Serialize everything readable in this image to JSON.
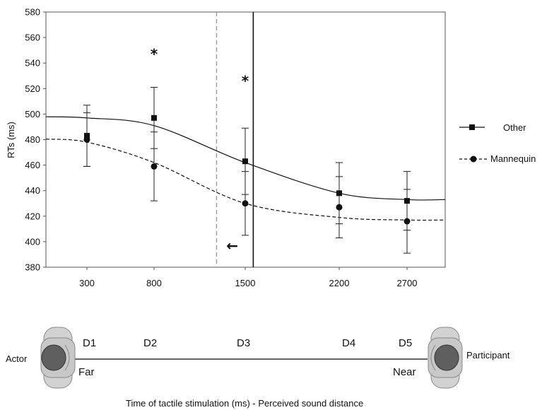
{
  "chart_data": {
    "type": "line",
    "title": "",
    "ylabel": "RTs (ms)",
    "xlabel": "Time of tactile stimulation (ms) - Perceived sound distance",
    "ylim": [
      380,
      580
    ],
    "yticks": [
      380,
      400,
      420,
      440,
      460,
      480,
      500,
      520,
      540,
      560,
      580
    ],
    "x": [
      300,
      800,
      1500,
      2200,
      2700
    ],
    "x_tick_labels": [
      "300",
      "800",
      "1500",
      "2200",
      "2700"
    ],
    "series": [
      {
        "name": "Other",
        "marker": "square",
        "line_style": "solid",
        "color": "#111111",
        "values": [
          483,
          497,
          463,
          438,
          432
        ],
        "error": [
          24,
          24,
          26,
          24,
          23
        ],
        "fit": [
          497,
          491,
          462,
          438,
          433
        ]
      },
      {
        "name": "Mannequin",
        "marker": "circle",
        "line_style": "dashed",
        "color": "#111111",
        "values": [
          480,
          459,
          430,
          427,
          416
        ],
        "error": [
          21,
          27,
          25,
          24,
          25
        ],
        "fit": [
          478,
          462,
          430,
          419,
          417
        ]
      }
    ],
    "reference_lines": [
      {
        "style": "dashed",
        "color": "#999999",
        "x_data": 1280
      },
      {
        "style": "solid",
        "color": "#111111",
        "x_data": 1560
      }
    ],
    "annotations": [
      {
        "text": "*",
        "x": 800,
        "y": 547
      },
      {
        "text": "*",
        "x": 1500,
        "y": 526
      },
      {
        "text": "←",
        "x": 1400,
        "y": 397
      }
    ],
    "legend": {
      "placement": "right"
    },
    "grid": false
  },
  "scale": {
    "labels": [
      "D1",
      "D2",
      "D3",
      "D4",
      "D5"
    ],
    "far_label": "Far",
    "near_label": "Near",
    "left_person": "Actor",
    "right_person": "Participant"
  }
}
